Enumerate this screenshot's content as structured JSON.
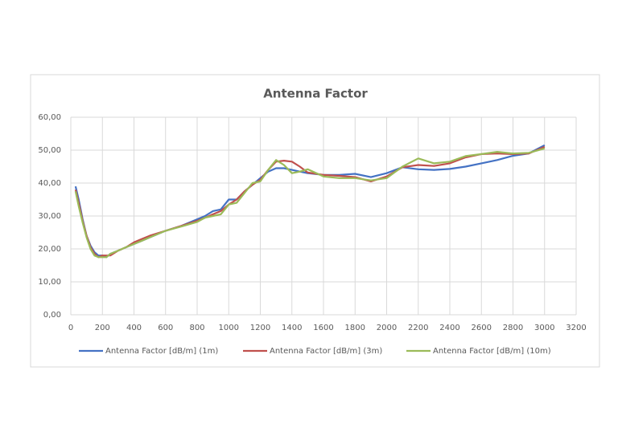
{
  "chart_data": {
    "type": "line",
    "title": "Antenna Factor",
    "x": [
      30,
      50,
      75,
      100,
      125,
      150,
      175,
      200,
      225,
      250,
      300,
      350,
      400,
      450,
      500,
      600,
      700,
      800,
      850,
      900,
      950,
      1000,
      1050,
      1100,
      1150,
      1200,
      1250,
      1300,
      1350,
      1400,
      1450,
      1500,
      1600,
      1700,
      1800,
      1900,
      2000,
      2100,
      2200,
      2300,
      2400,
      2500,
      2600,
      2700,
      2800,
      2900,
      3000
    ],
    "series": [
      {
        "name": "Antenna Factor [dB/m] (1m)",
        "color": "#4472c4",
        "values": [
          39,
          35,
          29,
          24,
          21,
          19,
          18,
          18,
          17.5,
          18.5,
          19.5,
          20.5,
          21.5,
          22.5,
          23.5,
          25.5,
          27,
          29,
          30,
          31.5,
          32,
          35,
          35,
          37.5,
          39.5,
          41.5,
          43.5,
          44.5,
          44.5,
          44,
          43.5,
          43,
          42.5,
          42.5,
          42.8,
          41.8,
          43,
          44.8,
          44.2,
          44,
          44.3,
          45,
          46,
          47,
          48.3,
          49,
          51.5
        ]
      },
      {
        "name": "Antenna Factor [dB/m] (3m)",
        "color": "#c0504d",
        "values": [
          38,
          34,
          28.5,
          24,
          20.5,
          18.5,
          17.5,
          18,
          18,
          18,
          19.5,
          20.5,
          22,
          23,
          24,
          25.5,
          27,
          28.5,
          29.5,
          30.5,
          31.5,
          33.5,
          35,
          37.5,
          39.5,
          41,
          44,
          46.5,
          46.8,
          46.5,
          45,
          43.2,
          42.5,
          42.2,
          41.8,
          40.5,
          42,
          44.8,
          45.5,
          45.2,
          46,
          47.8,
          48.8,
          49,
          48.8,
          49,
          51
        ]
      },
      {
        "name": "Antenna Factor [dB/m] (10m)",
        "color": "#9bbb59",
        "values": [
          37.5,
          33,
          28,
          23.5,
          20,
          18,
          17.5,
          17.5,
          17.5,
          18.5,
          19.5,
          20.5,
          21.5,
          22.5,
          23.5,
          25.5,
          26.8,
          28.2,
          29.5,
          30,
          30.5,
          33.5,
          34,
          37,
          40,
          40.5,
          44,
          47,
          45.5,
          43,
          43.5,
          44.2,
          42,
          41.5,
          41.5,
          40.8,
          41.5,
          45,
          47.5,
          46,
          46.5,
          48.2,
          48.8,
          49.5,
          49,
          49.2,
          50.5
        ]
      }
    ],
    "xlim": [
      0,
      3200
    ],
    "xticks": [
      0,
      200,
      400,
      600,
      800,
      1000,
      1200,
      1400,
      1600,
      1800,
      2000,
      2200,
      2400,
      2600,
      2800,
      3000,
      3200
    ],
    "ylim": [
      0,
      60
    ],
    "yticks": [
      {
        "value": 0,
        "label": "0,00"
      },
      {
        "value": 10,
        "label": "10,00"
      },
      {
        "value": 20,
        "label": "20,00"
      },
      {
        "value": 30,
        "label": "30,00"
      },
      {
        "value": 40,
        "label": "40,00"
      },
      {
        "value": 50,
        "label": "50,00"
      },
      {
        "value": 60,
        "label": "60,00"
      }
    ],
    "grid": true,
    "legend": "bottom"
  }
}
